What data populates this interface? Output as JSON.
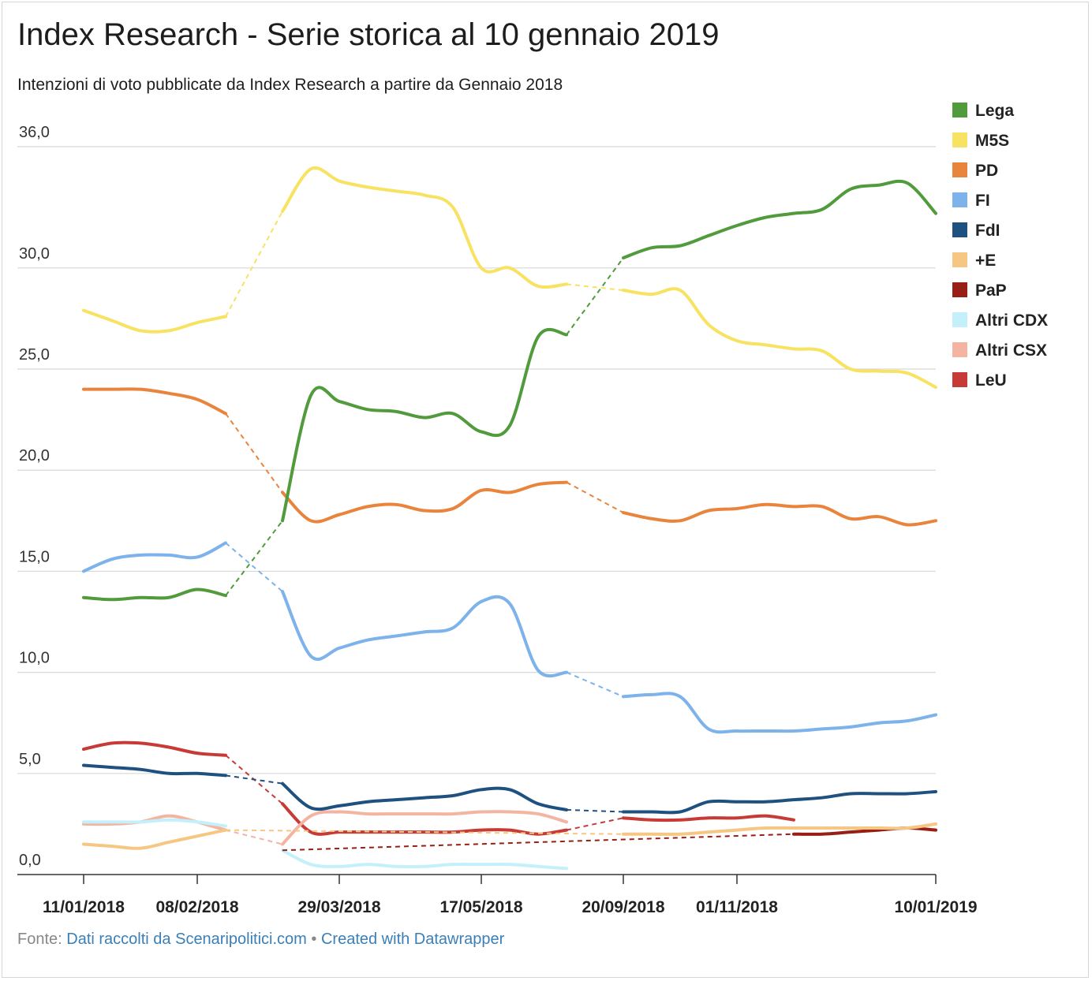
{
  "header": {
    "title": "Index Research - Serie storica al 10 gennaio 2019",
    "subtitle": "Intenzioni di voto pubblicate da Index Research a partire da Gennaio 2018"
  },
  "footer": {
    "source_prefix": "Fonte:",
    "source_link": "Dati raccolti da Scenaripolitici.com",
    "separator": "•",
    "credit_link": "Created with Datawrapper"
  },
  "chart_data": {
    "type": "line",
    "title": "Index Research - Serie storica al 10 gennaio 2019",
    "subtitle": "Intenzioni di voto pubblicate da Index Research a partire da Gennaio 2018",
    "ylim": [
      0,
      36
    ],
    "y_ticks": [
      0,
      5,
      10,
      15,
      20,
      25,
      30,
      36
    ],
    "y_tick_labels": [
      "0,0",
      "5,0",
      "10,0",
      "15,0",
      "20,0",
      "25,0",
      "30,0",
      "36,0"
    ],
    "grid": true,
    "legend_position": "right",
    "x_tick_labels": [
      {
        "x": 0,
        "label": "11/01/2018"
      },
      {
        "x": 4,
        "label": "08/02/2018"
      },
      {
        "x": 9,
        "label": "29/03/2018"
      },
      {
        "x": 14,
        "label": "17/05/2018"
      },
      {
        "x": 19,
        "label": "20/09/2018"
      },
      {
        "x": 23,
        "label": "01/11/2018"
      },
      {
        "x": 30,
        "label": "10/01/2019"
      }
    ],
    "x_count": 31,
    "series": [
      {
        "name": "Lega",
        "color": "#519b3c",
        "values": [
          13.7,
          13.6,
          13.7,
          13.7,
          14.1,
          13.8,
          null,
          17.5,
          23.7,
          23.4,
          23.0,
          22.9,
          22.6,
          22.8,
          21.9,
          22.2,
          26.6,
          26.7,
          null,
          30.5,
          31.0,
          31.1,
          31.6,
          32.1,
          32.5,
          32.7,
          32.9,
          33.9,
          34.1,
          34.2,
          32.7
        ],
        "gaps": [
          [
            5,
            7
          ],
          [
            17,
            19
          ]
        ]
      },
      {
        "name": "M5S",
        "color": "#f8e262",
        "values": [
          27.9,
          27.4,
          26.9,
          26.9,
          27.3,
          27.6,
          null,
          32.8,
          34.9,
          34.3,
          34.0,
          33.8,
          33.6,
          33.0,
          30.0,
          30.0,
          29.1,
          29.2,
          null,
          28.9,
          28.7,
          28.9,
          27.2,
          26.4,
          26.2,
          26.0,
          25.9,
          25.0,
          24.9,
          24.8,
          24.1
        ],
        "gaps": [
          [
            5,
            7
          ],
          [
            17,
            19
          ]
        ]
      },
      {
        "name": "PD",
        "color": "#e9843d",
        "values": [
          24.0,
          24.0,
          24.0,
          23.8,
          23.5,
          22.8,
          null,
          18.9,
          17.5,
          17.8,
          18.2,
          18.3,
          18.0,
          18.1,
          19.0,
          18.9,
          19.3,
          19.4,
          null,
          17.9,
          17.6,
          17.5,
          18.0,
          18.1,
          18.3,
          18.2,
          18.2,
          17.6,
          17.7,
          17.3,
          17.5
        ],
        "gaps": [
          [
            5,
            7
          ],
          [
            17,
            19
          ]
        ]
      },
      {
        "name": "FI",
        "color": "#7db2eb",
        "values": [
          15.0,
          15.6,
          15.8,
          15.8,
          15.7,
          16.4,
          null,
          14.0,
          10.8,
          11.2,
          11.6,
          11.8,
          12.0,
          12.2,
          13.5,
          13.4,
          10.1,
          10.0,
          null,
          8.8,
          8.9,
          8.8,
          7.2,
          7.1,
          7.1,
          7.1,
          7.2,
          7.3,
          7.5,
          7.6,
          7.9
        ],
        "gaps": [
          [
            5,
            7
          ],
          [
            17,
            19
          ]
        ]
      },
      {
        "name": "FdI",
        "color": "#1f5180",
        "values": [
          5.4,
          5.3,
          5.2,
          5.0,
          5.0,
          4.9,
          null,
          4.5,
          3.3,
          3.4,
          3.6,
          3.7,
          3.8,
          3.9,
          4.2,
          4.2,
          3.5,
          3.2,
          null,
          3.1,
          3.1,
          3.1,
          3.6,
          3.6,
          3.6,
          3.7,
          3.8,
          4.0,
          4.0,
          4.0,
          4.1
        ],
        "gaps": [
          [
            5,
            7
          ],
          [
            17,
            19
          ]
        ]
      },
      {
        "name": "+E",
        "color": "#f6c782",
        "values": [
          1.5,
          1.4,
          1.3,
          1.6,
          1.9,
          2.2,
          null,
          null,
          null,
          null,
          null,
          null,
          null,
          null,
          null,
          null,
          null,
          null,
          null,
          2.0,
          2.0,
          2.0,
          2.1,
          2.2,
          2.3,
          2.3,
          2.3,
          2.3,
          2.3,
          2.3,
          2.5
        ],
        "gaps": [
          [
            5,
            19
          ]
        ]
      },
      {
        "name": "PaP",
        "color": "#971f14",
        "values": [
          null,
          null,
          null,
          null,
          null,
          null,
          null,
          1.2,
          null,
          null,
          null,
          null,
          null,
          null,
          null,
          null,
          null,
          null,
          null,
          null,
          null,
          null,
          null,
          null,
          null,
          2.0,
          2.0,
          2.1,
          2.2,
          2.3,
          2.2
        ],
        "gaps": [
          [
            7,
            25
          ]
        ]
      },
      {
        "name": "Altri CDX",
        "color": "#c3f0fa",
        "values": [
          2.6,
          2.6,
          2.6,
          2.7,
          2.6,
          2.4,
          null,
          1.2,
          0.5,
          0.4,
          0.5,
          0.4,
          0.4,
          0.5,
          0.5,
          0.5,
          0.4,
          0.3,
          null,
          null,
          null,
          null,
          null,
          null,
          null,
          null,
          null,
          null,
          null,
          null,
          null
        ],
        "gaps": []
      },
      {
        "name": "Altri CSX",
        "color": "#f3b4a1",
        "values": [
          2.5,
          2.5,
          2.6,
          2.9,
          2.6,
          2.2,
          null,
          1.5,
          2.9,
          3.1,
          3.0,
          3.0,
          3.0,
          3.0,
          3.1,
          3.1,
          3.0,
          2.6,
          null,
          null,
          null,
          null,
          null,
          null,
          null,
          null,
          null,
          null,
          null,
          null,
          null
        ],
        "gaps": [
          [
            5,
            7
          ]
        ]
      },
      {
        "name": "LeU",
        "color": "#c73a36",
        "values": [
          6.2,
          6.5,
          6.5,
          6.3,
          6.0,
          5.9,
          null,
          3.5,
          2.1,
          2.1,
          2.1,
          2.1,
          2.1,
          2.1,
          2.2,
          2.2,
          2.0,
          2.2,
          null,
          2.8,
          2.7,
          2.7,
          2.8,
          2.8,
          2.9,
          2.7,
          null,
          null,
          null,
          null,
          null
        ],
        "gaps": [
          [
            5,
            7
          ],
          [
            17,
            19
          ]
        ]
      }
    ]
  }
}
